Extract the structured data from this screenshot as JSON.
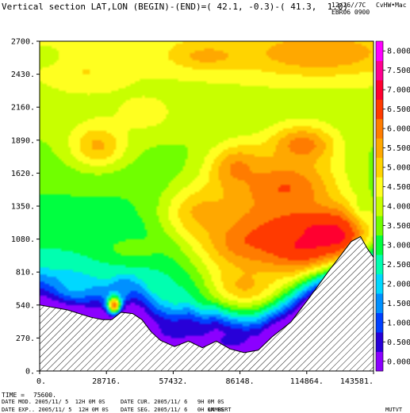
{
  "header": {
    "title": "Vertical section LAT,LON (BEGIN)-(END)=( 42.1, -0.3)-( 41.3,  1.0)",
    "date": "12/26//7C",
    "user": "CvHW•Mac",
    "run": "EBR06 0900"
  },
  "footer": {
    "time_label": "TIME =",
    "time_value": "75600.",
    "date_mod": "DATE MOD. 2005/11/ 5  12H 0M 0S",
    "date_cur": "DATE CUR. 2005/11/ 6   9H 0M 0S",
    "date_exp": "DATE EXP.. 2005/11/ 5  12H 0M 0S",
    "date_seg": "DATE SEG. 2005/11/ 6   0H 0M 0S",
    "projection": "LAMBERT",
    "variable": "MUTVT"
  },
  "chart_data": {
    "type": "heatmap",
    "title": "Vertical section LAT,LON (BEGIN)-(END)=( 42.1, -0.3)-( 41.3,  1.0)",
    "xlabel": "",
    "ylabel": "",
    "xlim": [
      0,
      143581
    ],
    "ylim": [
      0,
      2700
    ],
    "x_ticks": [
      "0.",
      "28716.",
      "57432.",
      "86148.",
      "114864.",
      "143581."
    ],
    "y_ticks": [
      "0.",
      "270.",
      "540.",
      "810.",
      "1080.",
      "1350.",
      "1620.",
      "1890.",
      "2160.",
      "2430.",
      "2700."
    ],
    "colorbar": {
      "levels": [
        "0.000",
        "0.500",
        "1.000",
        "1.500",
        "2.000",
        "2.500",
        "3.000",
        "3.500",
        "4.000",
        "4.500",
        "5.000",
        "5.500",
        "6.000",
        "6.500",
        "7.000",
        "7.500",
        "8.000"
      ],
      "colors": [
        "#8b00ff",
        "#2800d8",
        "#0040ff",
        "#0090ff",
        "#00d8ff",
        "#00ffb0",
        "#00ff40",
        "#70ff00",
        "#c8ff00",
        "#ffff20",
        "#ffd400",
        "#ffa800",
        "#ff7c00",
        "#ff3a00",
        "#ff0030",
        "#ff0090",
        "#ff00ff"
      ],
      "range": [
        -0.25,
        8.25
      ]
    },
    "terrain": {
      "x": [
        0,
        12000,
        22000,
        27000,
        31000,
        35000,
        40000,
        44000,
        48000,
        52000,
        58000,
        64000,
        70000,
        76000,
        82000,
        88000,
        94000,
        100000,
        108000,
        116000,
        124000,
        130000,
        134000,
        138000,
        141000,
        143581
      ],
      "z": [
        540,
        500,
        440,
        420,
        420,
        480,
        470,
        420,
        320,
        250,
        200,
        245,
        190,
        245,
        180,
        150,
        170,
        280,
        400,
        600,
        810,
        960,
        1060,
        1100,
        1000,
        930
      ]
    },
    "field_points": [
      {
        "x": 110000,
        "z": 1050,
        "v": 7.5,
        "w": 22000,
        "h": 260
      },
      {
        "x": 118000,
        "z": 1150,
        "v": 7.0,
        "w": 18000,
        "h": 160
      },
      {
        "x": 128000,
        "z": 1100,
        "v": 7.0,
        "w": 16000,
        "h": 230
      },
      {
        "x": 90000,
        "z": 1080,
        "v": 6.5,
        "w": 25000,
        "h": 320
      },
      {
        "x": 105000,
        "z": 1500,
        "v": 6.5,
        "w": 25000,
        "h": 280
      },
      {
        "x": 85000,
        "z": 1650,
        "v": 6.0,
        "w": 12000,
        "h": 200
      },
      {
        "x": 113000,
        "z": 1850,
        "v": 6.2,
        "w": 14000,
        "h": 160
      },
      {
        "x": 88000,
        "z": 700,
        "v": 5.5,
        "w": 16000,
        "h": 200
      },
      {
        "x": 70000,
        "z": 1300,
        "v": 5.5,
        "w": 16000,
        "h": 220
      },
      {
        "x": 25000,
        "z": 1850,
        "v": 5.5,
        "w": 12000,
        "h": 180
      },
      {
        "x": 20000,
        "z": 2450,
        "v": 4.8,
        "w": 14000,
        "h": 150
      },
      {
        "x": 2000,
        "z": 2580,
        "v": 4.0,
        "w": 8000,
        "h": 100
      },
      {
        "x": 120000,
        "z": 2600,
        "v": 5.8,
        "w": 34000,
        "h": 180
      },
      {
        "x": 72000,
        "z": 2580,
        "v": 5.5,
        "w": 16000,
        "h": 110
      },
      {
        "x": 45000,
        "z": 2100,
        "v": 4.5,
        "w": 14000,
        "h": 160
      },
      {
        "x": 40000,
        "z": 1000,
        "v": 3.5,
        "w": 15000,
        "h": 110
      },
      {
        "x": 15000,
        "z": 700,
        "v": 2.0,
        "w": 9000,
        "h": 130
      },
      {
        "x": 35000,
        "z": 660,
        "v": 1.5,
        "w": 6000,
        "h": 90
      },
      {
        "x": 32000,
        "z": 540,
        "v": 6.5,
        "w": 3000,
        "h": 70
      },
      {
        "x": 60000,
        "z": 320,
        "v": 0.5,
        "w": 14000,
        "h": 100
      },
      {
        "x": 82000,
        "z": 240,
        "v": 0.5,
        "w": 10000,
        "h": 80
      }
    ]
  }
}
